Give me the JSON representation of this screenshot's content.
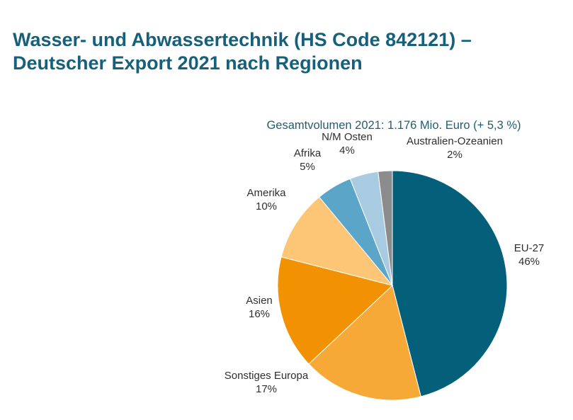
{
  "chart_data": {
    "type": "pie",
    "title_lines": [
      "Wasser- und Abwassertechnik (HS Code 842121) –",
      "Deutscher Export 2021 nach Regionen"
    ],
    "subtitle": "Gesamtvolumen 2021: 1.176 Mio. Euro (+ 5,3 %)",
    "start_angle_deg": 0,
    "direction": "clockwise",
    "slices": [
      {
        "label": "EU-27",
        "value": 46,
        "value_label": "46%",
        "color": "#04607a"
      },
      {
        "label": "Sonstiges Europa",
        "value": 17,
        "value_label": "17%",
        "color": "#f6a937"
      },
      {
        "label": "Asien",
        "value": 16,
        "value_label": "16%",
        "color": "#f29101"
      },
      {
        "label": "Amerika",
        "value": 10,
        "value_label": "10%",
        "color": "#fdc676"
      },
      {
        "label": "Afrika",
        "value": 5,
        "value_label": "5%",
        "color": "#5ba6c8"
      },
      {
        "label": "N/M Osten",
        "value": 4,
        "value_label": "4%",
        "color": "#a8cbe1"
      },
      {
        "label": "Australien-Ozeanien",
        "value": 2,
        "value_label": "2%",
        "color": "#8c8c8c"
      }
    ]
  }
}
